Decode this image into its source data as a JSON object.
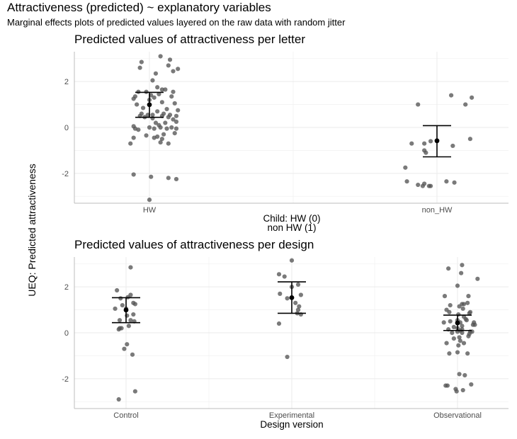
{
  "title": "Attractiveness (predicted) ~ explanatory variables",
  "subtitle": "Marginal effects plots of predicted values layered on the raw data with random jitter",
  "y_axis_title": "UEQ: Predicted attractiveness",
  "colors": {
    "point": "#555555",
    "estimate": "#000000",
    "grid": "#ebebeb",
    "axis": "#bdbdbd"
  },
  "chart_data": [
    {
      "type": "scatter",
      "title": "Predicted values of attractiveness per letter",
      "xlabel": "Child: HW (0)",
      "xlabel_line2": "non HW (1)",
      "ylabel": "UEQ: Predicted attractiveness",
      "categories": [
        "HW",
        "non_HW"
      ],
      "y_ticks": [
        -2,
        0,
        2
      ],
      "ylim": [
        -3.3,
        3.3
      ],
      "grid": true,
      "predicted": [
        {
          "category": "HW",
          "estimate": 0.99,
          "lower": 0.44,
          "upper": 1.53
        },
        {
          "category": "non_HW",
          "estimate": -0.58,
          "lower": -1.28,
          "upper": 0.08
        }
      ],
      "points": [
        {
          "category": "HW",
          "x_jitter": [
            0.07,
            0.13,
            -0.05,
            0.18,
            -0.06,
            0.04,
            0.12,
            0.15,
            0.02,
            0.05,
            0.08,
            -0.07,
            0.1,
            -0.02,
            0.15,
            0.06,
            0.01,
            -0.09,
            0.14,
            0.03,
            -0.1,
            0.0,
            0.08,
            0.16,
            -0.08,
            -0.04,
            0.11,
            0.18,
            0.05,
            0.09,
            -0.05,
            0.02,
            0.13,
            -0.01,
            0.08,
            0.17,
            -0.06,
            0.12,
            -0.03,
            0.02,
            0.15,
            0.17,
            0.04,
            0.1,
            0.06,
            -0.1,
            0.07,
            0.14,
            0.0,
            0.11,
            0.03,
            -0.07,
            0.16,
            0.09,
            -0.02,
            0.05,
            0.03,
            -0.1,
            0.08,
            0.17,
            -0.09,
            0.12,
            0.07,
            -0.12,
            -0.1,
            0.01,
            0.12,
            0.17,
            0.0
          ],
          "y": [
            3.1,
            2.95,
            2.85,
            2.55,
            2.6,
            2.35,
            2.7,
            2.45,
            2.05,
            1.75,
            1.65,
            1.55,
            1.65,
            1.55,
            1.55,
            1.45,
            1.4,
            1.35,
            1.35,
            1.3,
            1.25,
            1.2,
            1.1,
            1.05,
            1.0,
            0.85,
            0.8,
            0.75,
            0.7,
            0.6,
            0.6,
            0.55,
            0.55,
            0.55,
            0.5,
            0.5,
            0.5,
            0.45,
            0.45,
            0.4,
            0.35,
            0.25,
            0.2,
            0.2,
            0.1,
            0.05,
            0.0,
            0.0,
            0.0,
            -0.05,
            -0.05,
            -0.1,
            -0.25,
            -0.3,
            -0.35,
            -0.4,
            -0.45,
            -0.45,
            -0.5,
            -0.05,
            -0.05,
            -0.7,
            -0.65,
            -0.7,
            -2.05,
            -2.15,
            -2.2,
            -2.25,
            -3.15
          ]
        },
        {
          "category": "non_HW",
          "x_jitter": [
            0.09,
            -0.12,
            0.22,
            0.18,
            0.21,
            -0.04,
            -0.08,
            0.1,
            -0.16,
            -0.08,
            -0.2,
            -0.07,
            0.06,
            0.11,
            -0.19,
            -0.08,
            -0.09,
            -0.12,
            -0.04,
            -0.05
          ],
          "y": [
            1.4,
            1.0,
            1.3,
            1.0,
            -0.5,
            -0.6,
            -0.7,
            -0.8,
            -0.7,
            -1.0,
            -1.75,
            -1.1,
            -2.35,
            -2.4,
            -2.35,
            -2.45,
            -2.55,
            -2.5,
            -2.55,
            -2.55
          ]
        }
      ]
    },
    {
      "type": "scatter",
      "title": "Predicted values of attractiveness per design",
      "xlabel": "Design version",
      "ylabel": "UEQ: Predicted attractiveness",
      "categories": [
        "Control",
        "Experimental",
        "Observational"
      ],
      "y_ticks": [
        -2,
        0,
        2
      ],
      "ylim": [
        -3.3,
        3.3
      ],
      "grid": true,
      "predicted": [
        {
          "category": "Control",
          "estimate": 0.99,
          "lower": 0.44,
          "upper": 1.53
        },
        {
          "category": "Experimental",
          "estimate": 1.53,
          "lower": 0.85,
          "upper": 2.22
        },
        {
          "category": "Observational",
          "estimate": 0.43,
          "lower": 0.1,
          "upper": 0.77
        }
      ],
      "points": [
        {
          "category": "Control",
          "x_jitter": [
            0.05,
            -0.1,
            0.05,
            -0.06,
            0.02,
            0.1,
            -0.04,
            -0.12,
            0.0,
            0.08,
            0.09,
            -0.07,
            0.01,
            0.05,
            -0.08,
            -0.05,
            0.03,
            0.01,
            -0.02,
            0.07,
            0.1,
            -0.08,
            0.08,
            -0.07
          ],
          "y": [
            2.85,
            1.85,
            1.65,
            1.5,
            1.55,
            1.25,
            1.2,
            1.05,
            1.05,
            0.8,
            0.5,
            0.55,
            0.75,
            0.55,
            0.15,
            0.2,
            0.3,
            -0.5,
            -0.7,
            -0.95,
            -2.55,
            -2.9,
            1.3,
            0.2
          ]
        },
        {
          "category": "Experimental",
          "x_jitter": [
            -0.14,
            -0.08,
            0.0,
            0.0,
            0.07,
            -0.13,
            0.1,
            0.04,
            -0.05,
            0.06,
            0.1,
            -0.14,
            0.07,
            0.08,
            -0.05
          ],
          "y": [
            2.55,
            2.45,
            3.15,
            2.0,
            2.1,
            1.7,
            1.65,
            1.3,
            1.5,
            0.85,
            0.8,
            0.4,
            1.0,
            1.15,
            -1.05
          ]
        },
        {
          "category": "Observational",
          "x_jitter": [
            0.05,
            0.04,
            -0.1,
            0.22,
            0.0,
            -0.14,
            0.12,
            0.05,
            0.07,
            0.11,
            0.02,
            0.06,
            -0.09,
            0.13,
            -0.08,
            0.01,
            0.14,
            0.07,
            0.09,
            0.1,
            0.0,
            -0.08,
            0.03,
            -0.15,
            0.18,
            0.17,
            -0.04,
            -0.1,
            0.05,
            0.03,
            0.14,
            0.16,
            0.0,
            -0.06,
            0.05,
            0.12,
            0.02,
            -0.04,
            -0.12,
            0.01,
            0.07,
            -0.09,
            0.0,
            0.11,
            0.02,
            0.08,
            0.15,
            -0.13,
            -0.11,
            -0.02,
            0.06,
            -0.01,
            0.03,
            0.19,
            0.0,
            0.13,
            0.05,
            -0.12
          ],
          "y": [
            2.95,
            2.6,
            2.8,
            2.35,
            2.05,
            1.6,
            1.6,
            1.25,
            1.25,
            1.3,
            1.15,
            1.05,
            0.9,
            0.85,
            1.2,
            0.8,
            0.9,
            0.7,
            0.6,
            0.55,
            0.55,
            0.5,
            0.45,
            0.45,
            0.45,
            0.35,
            0.25,
            0.15,
            0.15,
            0.1,
            0.05,
            0.05,
            0.05,
            0.0,
            0.0,
            -0.15,
            -0.2,
            -0.25,
            -0.45,
            -0.55,
            -0.45,
            -0.9,
            -0.85,
            -0.9,
            -1.8,
            -1.85,
            -2.25,
            -2.3,
            -2.3,
            -2.45,
            -2.5,
            -2.55,
            -0.35,
            0.35,
            0.2,
            -0.05,
            0.3,
            1.0
          ]
        }
      ]
    }
  ]
}
